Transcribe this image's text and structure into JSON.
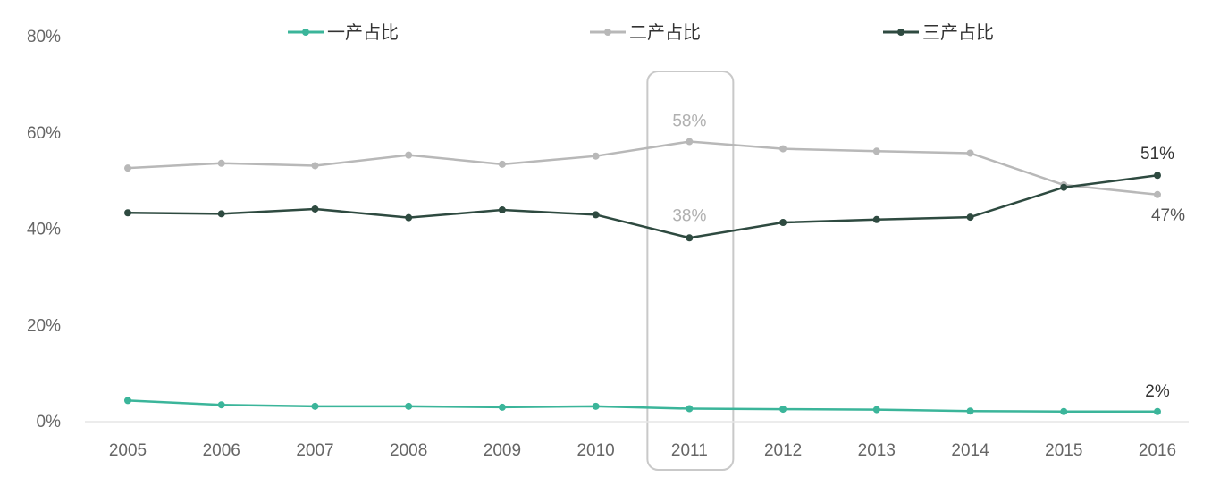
{
  "chart_data": {
    "type": "line",
    "title": "",
    "xlabel": "",
    "ylabel": "",
    "categories": [
      "2005",
      "2006",
      "2007",
      "2008",
      "2009",
      "2010",
      "2011",
      "2012",
      "2013",
      "2014",
      "2015",
      "2016"
    ],
    "ylim": [
      0,
      80
    ],
    "yticks": [
      "0%",
      "20%",
      "40%",
      "60%",
      "80%"
    ],
    "grid": false,
    "legend_position": "top",
    "highlight_category": "2011",
    "series": [
      {
        "name": "一产占比",
        "color": "#3bb59a",
        "values": [
          4.2,
          3.3,
          3.0,
          3.0,
          2.8,
          3.0,
          2.5,
          2.4,
          2.3,
          2.0,
          1.9,
          1.9
        ]
      },
      {
        "name": "二产占比",
        "color": "#b8b8b8",
        "values": [
          52.5,
          53.5,
          53.0,
          55.2,
          53.3,
          55.0,
          58.0,
          56.5,
          56.0,
          55.6,
          49.0,
          47.0
        ]
      },
      {
        "name": "三产占比",
        "color": "#2e4a40",
        "values": [
          43.2,
          43.0,
          44.0,
          42.2,
          43.8,
          42.8,
          38.0,
          41.2,
          41.8,
          42.3,
          48.5,
          51.0
        ]
      }
    ],
    "annotations": [
      {
        "text": "58%",
        "category": "2011",
        "series": "二产占比"
      },
      {
        "text": "38%",
        "category": "2011",
        "series": "三产占比"
      },
      {
        "text": "51%",
        "category": "2016",
        "series": "三产占比"
      },
      {
        "text": "47%",
        "category": "2016",
        "series": "二产占比"
      },
      {
        "text": "2%",
        "category": "2016",
        "series": "一产占比"
      }
    ]
  }
}
